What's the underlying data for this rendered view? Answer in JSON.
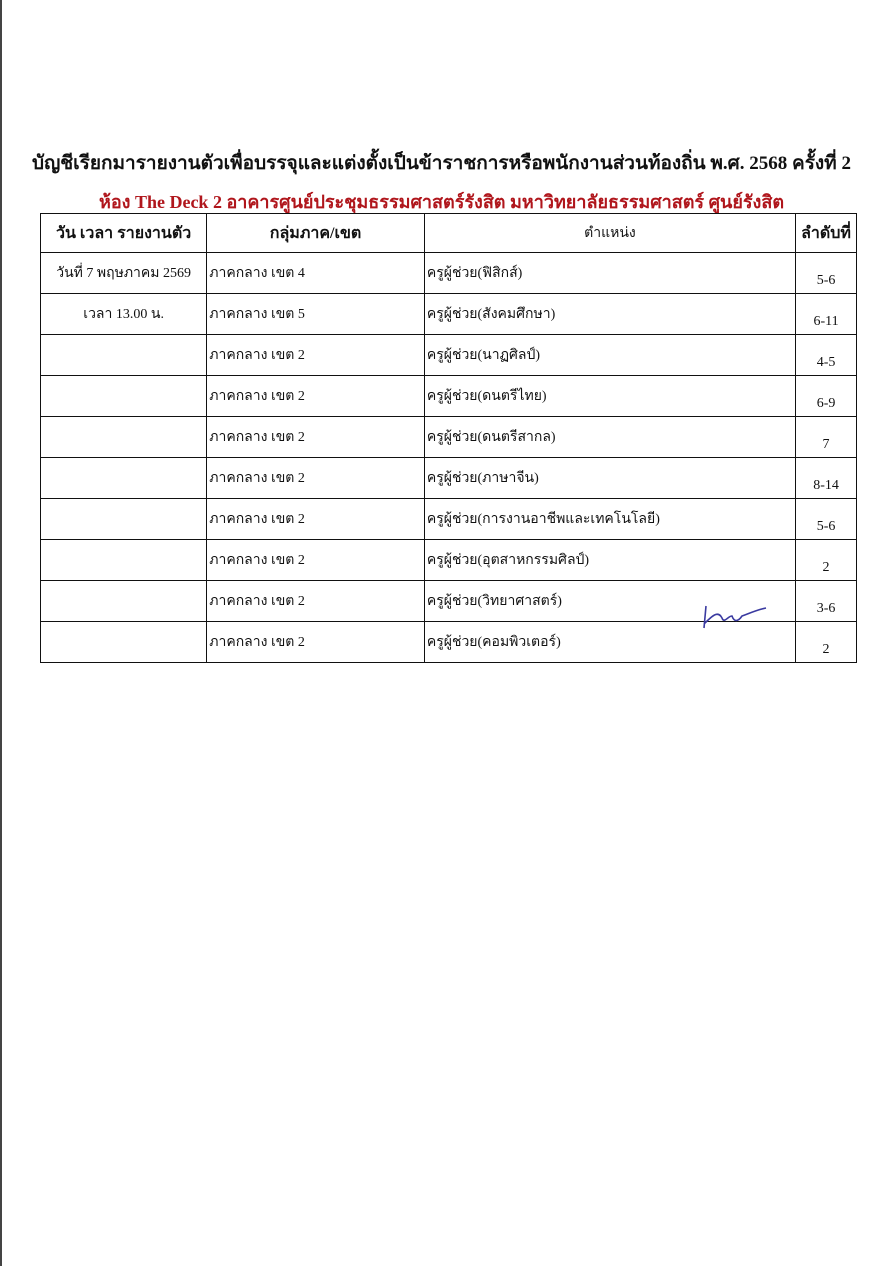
{
  "document": {
    "title": "บัญชีเรียกมารายงานตัวเพื่อบรรจุและแต่งตั้งเป็นข้าราชการหรือพนักงานส่วนท้องถิ่น พ.ศ. 2568 ครั้งที่ 2",
    "subtitle": "ห้อง The Deck 2 อาคารศูนย์ประชุมธรรมศาสตร์รังสิต มหาวิทยาลัยธรรมศาสตร์ ศูนย์รังสิต",
    "subtitle_color": "#b0161c"
  },
  "table": {
    "headers": [
      "วัน เวลา รายงานตัว",
      "กลุ่มภาค/เขต",
      "ตำแหน่ง",
      "ลำดับที่"
    ],
    "rows": [
      [
        "วันที่ 7 พฤษภาคม 2569",
        "ภาคกลาง เขต 4",
        "ครูผู้ช่วย(ฟิสิกส์)",
        "5-6"
      ],
      [
        "เวลา 13.00 น.",
        "ภาคกลาง เขต 5",
        "ครูผู้ช่วย(สังคมศึกษา)",
        "6-11"
      ],
      [
        "",
        "ภาคกลาง เขต 2",
        "ครูผู้ช่วย(นาฏศิลป์)",
        "4-5"
      ],
      [
        "",
        "ภาคกลาง เขต 2",
        "ครูผู้ช่วย(ดนตรีไทย)",
        "6-9"
      ],
      [
        "",
        "ภาคกลาง เขต 2",
        "ครูผู้ช่วย(ดนตรีสากล)",
        "7"
      ],
      [
        "",
        "ภาคกลาง เขต 2",
        "ครูผู้ช่วย(ภาษาจีน)",
        "8-14"
      ],
      [
        "",
        "ภาคกลาง เขต 2",
        "ครูผู้ช่วย(การงานอาชีพและเทคโนโลยี)",
        "5-6"
      ],
      [
        "",
        "ภาคกลาง เขต 2",
        "ครูผู้ช่วย(อุตสาหกรรมศิลป์)",
        "2"
      ],
      [
        "",
        "ภาคกลาง เขต 2",
        "ครูผู้ช่วย(วิทยาศาสตร์)",
        "3-6"
      ],
      [
        "",
        "ภาคกลาง เขต 2",
        "ครูผู้ช่วย(คอมพิวเตอร์)",
        "2"
      ]
    ]
  },
  "signature_color": "#3a3aa0"
}
